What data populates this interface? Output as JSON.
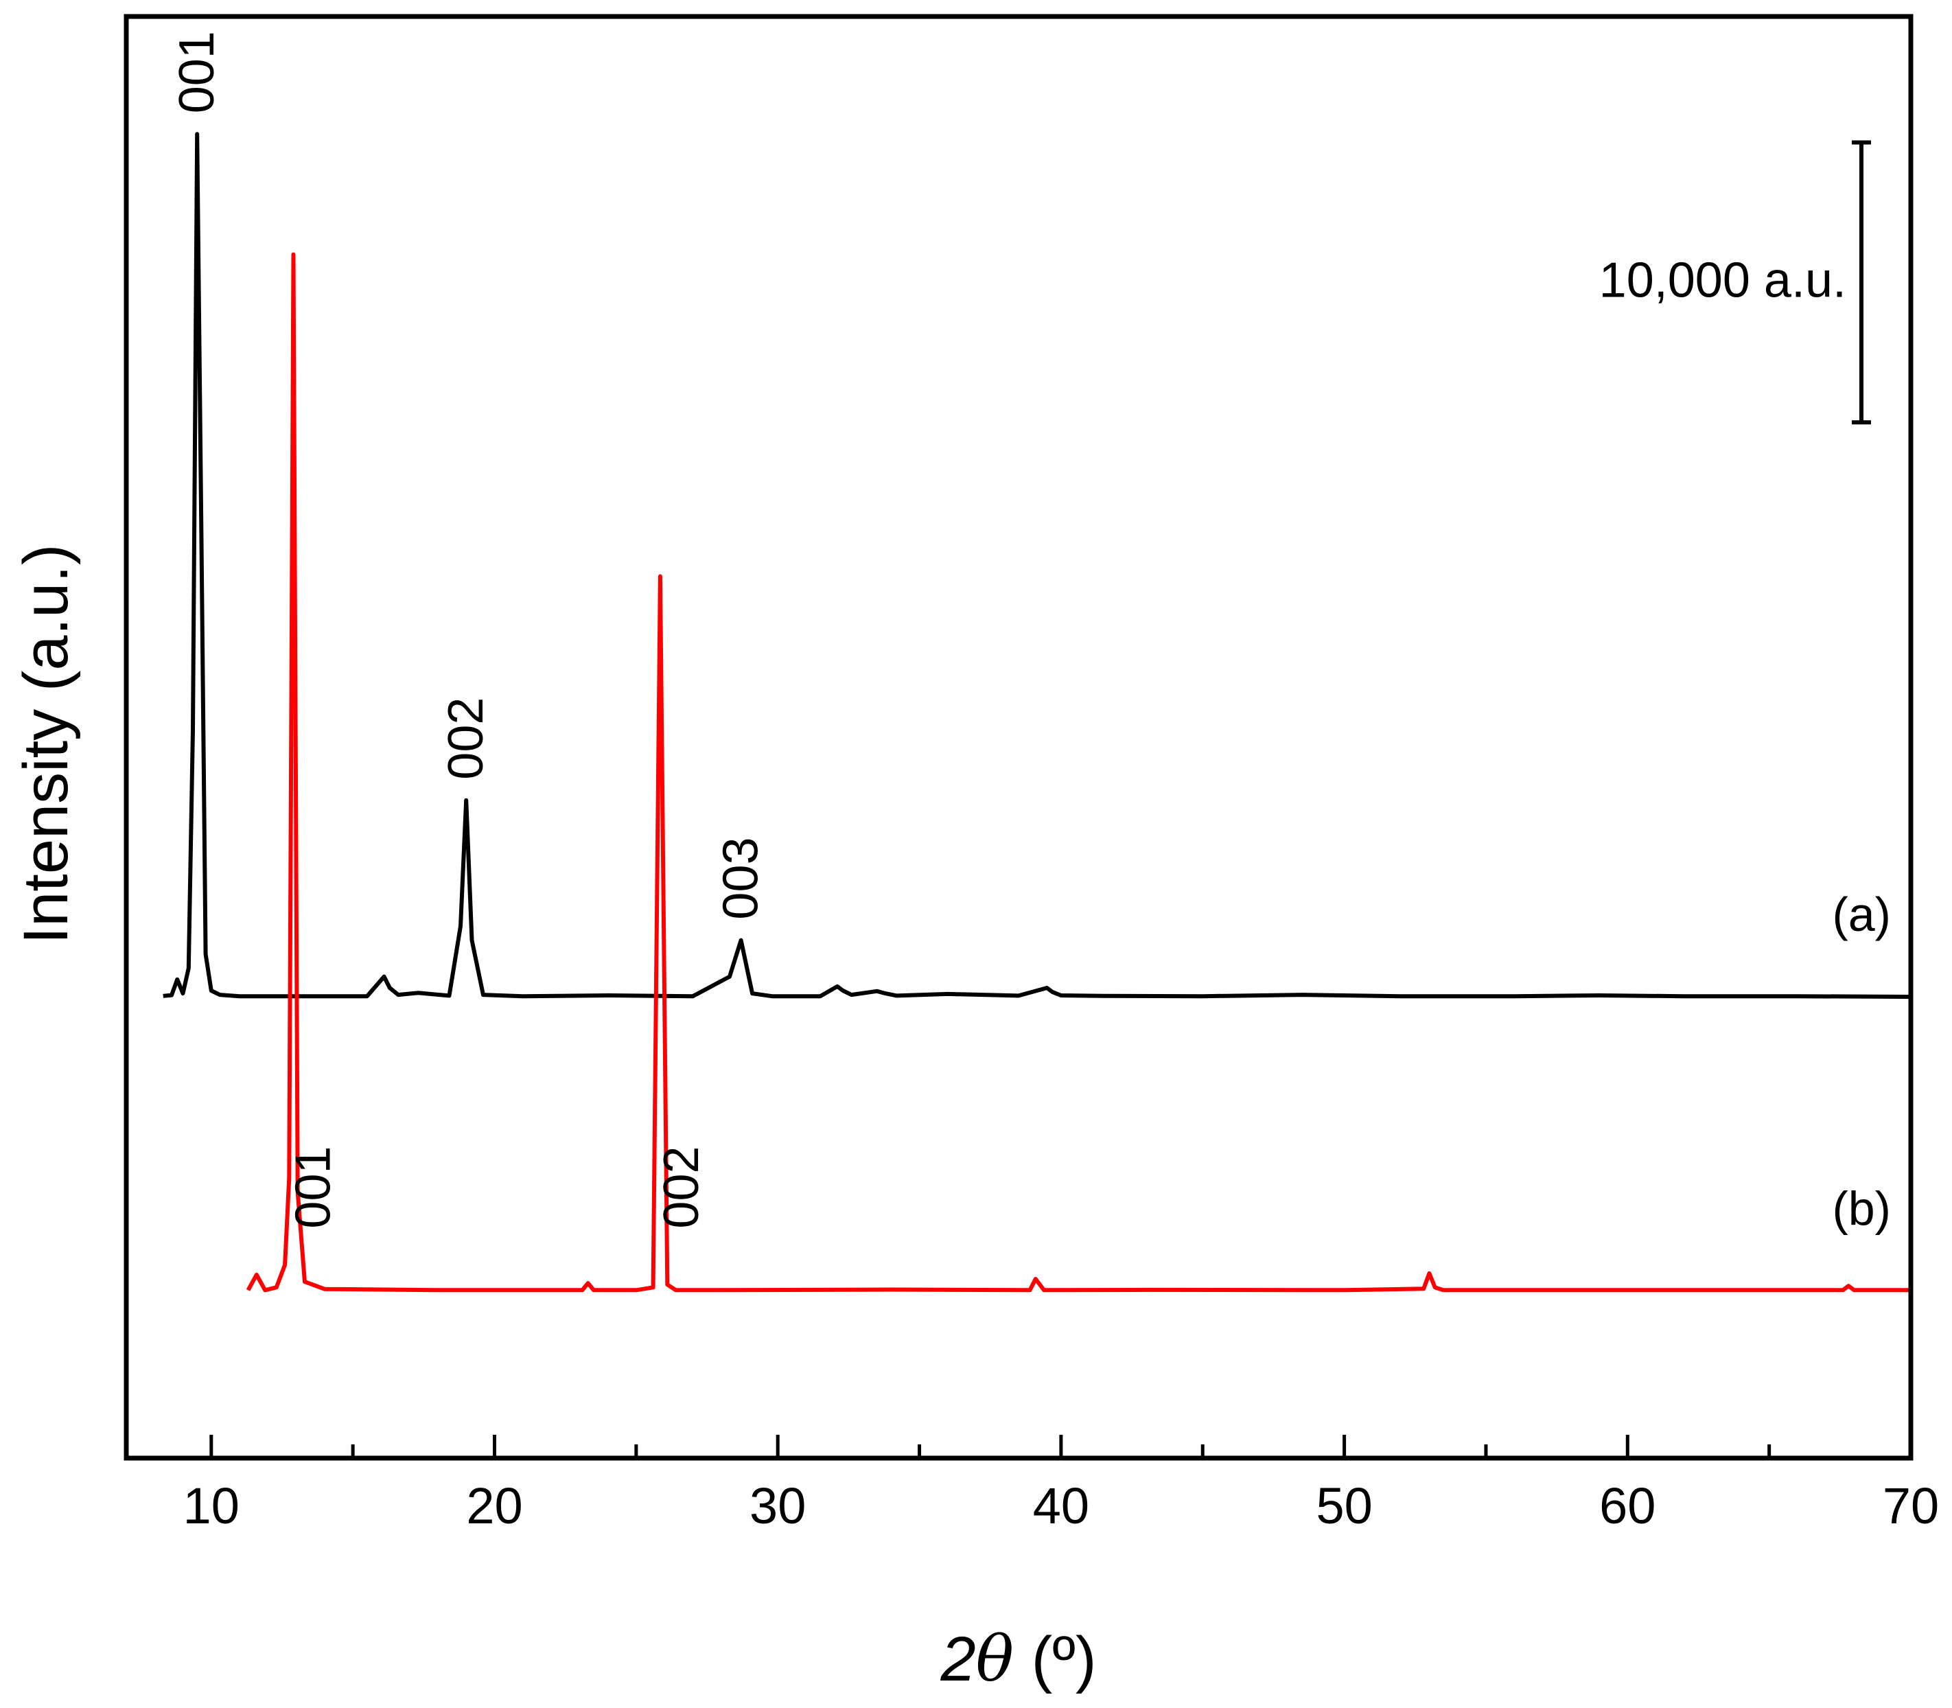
{
  "chart_data": {
    "type": "line",
    "xlabel_prefix": "2",
    "xlabel_symbol": "θ",
    "xlabel_unit": " (º)",
    "ylabel": "Intensity (a.u.)",
    "xlim": [
      7,
      70
    ],
    "ylim": [
      -7000,
      44500
    ],
    "xticks": [
      "10",
      "20",
      "30",
      "40",
      "50",
      "60",
      "70"
    ],
    "xtick_values": [
      10,
      20,
      30,
      40,
      50,
      60,
      70
    ],
    "grid": false,
    "scale_bar": {
      "label": "10,000 a.u.",
      "value": 10000,
      "y_top": 40000
    },
    "series": [
      {
        "name": "(a)",
        "color": "#000000",
        "baseline": 9500,
        "x": [
          8.3,
          8.6,
          8.8,
          9.0,
          9.2,
          9.35,
          9.5,
          9.65,
          9.8,
          10.0,
          10.3,
          11.0,
          13.0,
          15.5,
          16.1,
          16.3,
          16.6,
          17.3,
          18.4,
          18.8,
          19.0,
          19.2,
          19.6,
          21.0,
          24.0,
          27.0,
          28.3,
          28.7,
          29.1,
          29.8,
          31.5,
          32.1,
          32.3,
          32.6,
          33.5,
          33.8,
          34.2,
          36.0,
          38.5,
          39.5,
          39.7,
          40.0,
          41.5,
          45.0,
          48.5,
          52.0,
          56.0,
          59.0,
          62.0,
          66.0,
          70.0
        ],
        "y": [
          9510,
          9540,
          10100,
          9600,
          10500,
          19000,
          40300,
          26000,
          11000,
          9700,
          9550,
          9500,
          9500,
          9500,
          10200,
          9800,
          9550,
          9620,
          9520,
          12000,
          16500,
          11500,
          9550,
          9500,
          9530,
          9500,
          10200,
          11500,
          9600,
          9500,
          9500,
          9850,
          9700,
          9550,
          9680,
          9600,
          9520,
          9580,
          9520,
          9800,
          9650,
          9530,
          9510,
          9500,
          9550,
          9500,
          9500,
          9530,
          9500,
          9500,
          9480
        ]
      },
      {
        "name": "(b)",
        "color": "#ff0000",
        "baseline": -1000,
        "x": [
          11.3,
          11.6,
          11.9,
          12.3,
          12.6,
          12.75,
          12.9,
          13.05,
          13.3,
          14.0,
          18.0,
          23.1,
          23.3,
          23.5,
          25.0,
          25.6,
          25.85,
          26.1,
          26.4,
          28.0,
          34.0,
          38.9,
          39.1,
          39.4,
          43.0,
          50.0,
          52.8,
          53.0,
          53.2,
          53.5,
          58.0,
          65.0,
          67.6,
          67.8,
          68.0,
          70.0
        ],
        "y": [
          -1000,
          -450,
          -1000,
          -900,
          -100,
          3000,
          36000,
          2500,
          -700,
          -960,
          -1000,
          -1000,
          -750,
          -1000,
          -1000,
          -900,
          24500,
          -800,
          -1000,
          -1000,
          -980,
          -1000,
          -600,
          -1000,
          -990,
          -1000,
          -950,
          -400,
          -900,
          -1000,
          -1000,
          -1000,
          -1000,
          -850,
          -1000,
          -1000
        ]
      }
    ],
    "annotations": [
      {
        "text": "001",
        "series": "(a)",
        "x": 9.5
      },
      {
        "text": "002",
        "series": "(a)",
        "x": 19.0
      },
      {
        "text": "003",
        "series": "(a)",
        "x": 28.7
      },
      {
        "text": "001",
        "series": "(b)",
        "x": 13.6
      },
      {
        "text": "002",
        "series": "(b)",
        "x": 26.6
      }
    ]
  }
}
